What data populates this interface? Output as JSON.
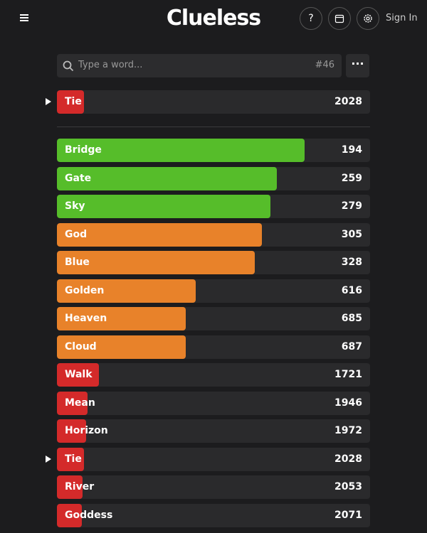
{
  "header": {
    "title": "Clueless",
    "help": "?",
    "sign_in": "Sign In"
  },
  "search": {
    "placeholder": "Type a word...",
    "game_number": "#46"
  },
  "current_guess": {
    "word": "Tie",
    "rank": 2028,
    "color": "#d42a2a"
  },
  "guesses": [
    {
      "word": "Bridge",
      "rank": 194,
      "color": "#56bd2a"
    },
    {
      "word": "Gate",
      "rank": 259,
      "color": "#56bd2a"
    },
    {
      "word": "Sky",
      "rank": 279,
      "color": "#56bd2a"
    },
    {
      "word": "God",
      "rank": 305,
      "color": "#e8822a"
    },
    {
      "word": "Blue",
      "rank": 328,
      "color": "#e8822a"
    },
    {
      "word": "Golden",
      "rank": 616,
      "color": "#e8822a"
    },
    {
      "word": "Heaven",
      "rank": 685,
      "color": "#e8822a"
    },
    {
      "word": "Cloud",
      "rank": 687,
      "color": "#e8822a"
    },
    {
      "word": "Walk",
      "rank": 1721,
      "color": "#d42a2a"
    },
    {
      "word": "Mean",
      "rank": 1946,
      "color": "#d42a2a"
    },
    {
      "word": "Horizon",
      "rank": 1972,
      "color": "#d42a2a"
    },
    {
      "word": "Tie",
      "rank": 2028,
      "color": "#d42a2a"
    },
    {
      "word": "River",
      "rank": 2053,
      "color": "#d42a2a"
    },
    {
      "word": "Goddess",
      "rank": 2071,
      "color": "#d42a2a"
    }
  ]
}
